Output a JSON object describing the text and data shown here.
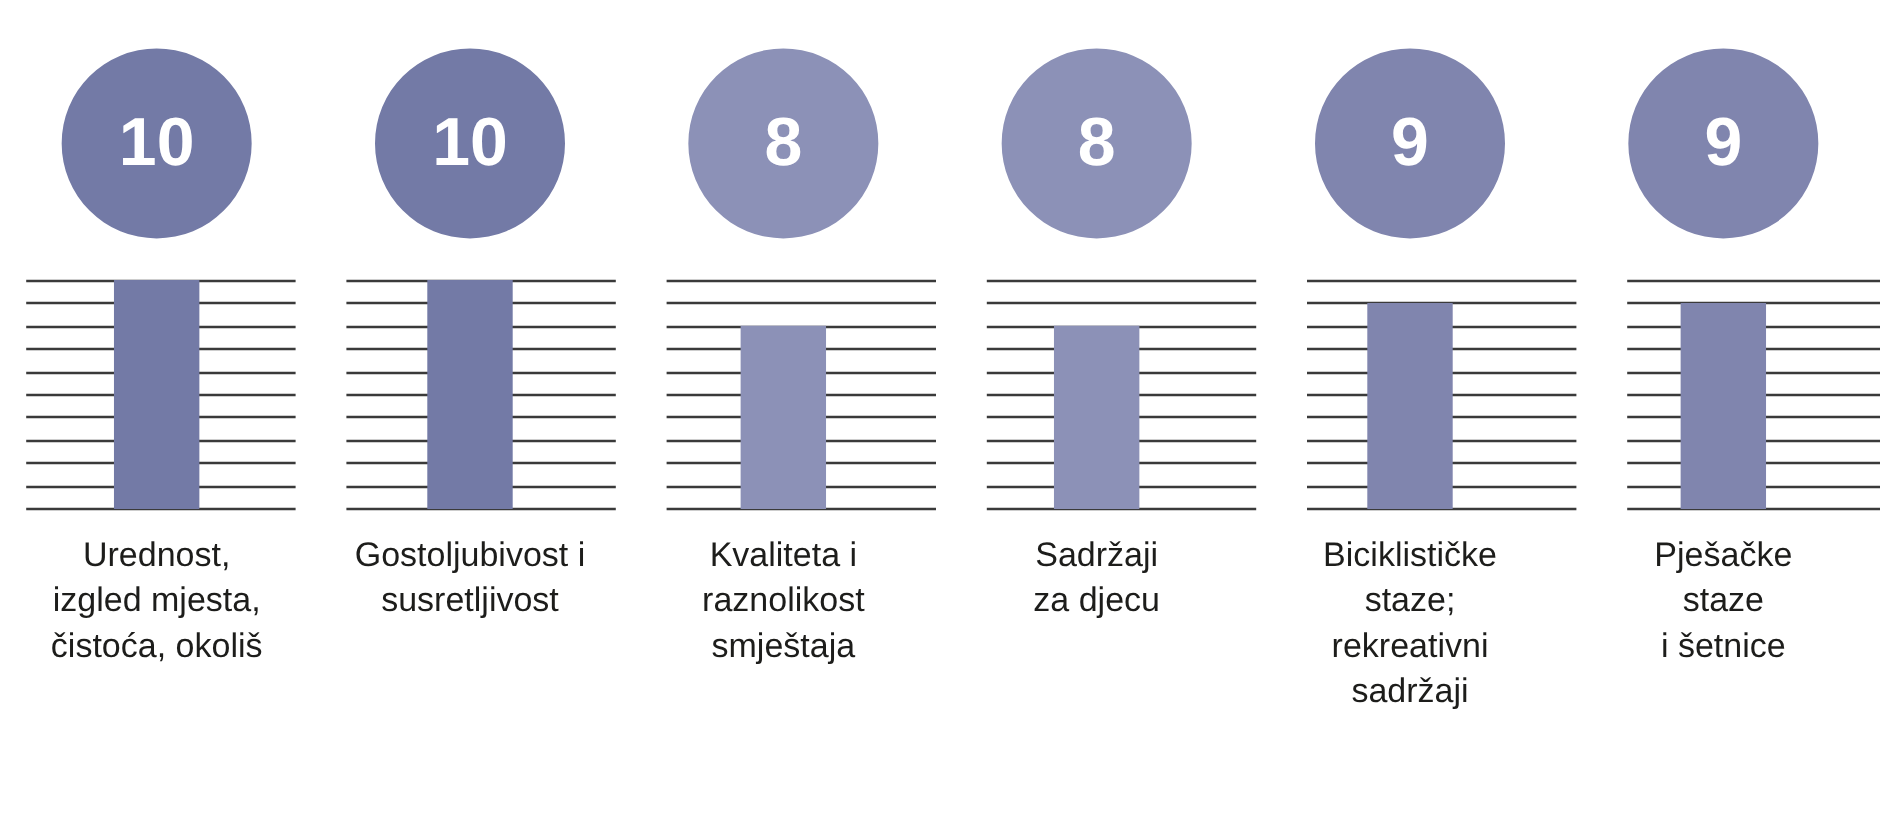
{
  "chart_data": {
    "type": "bar",
    "categories": [
      "Urednost,\nizgled mjesta,\nčistoća, okoliš",
      "Gostoljubivost i\nsusretljivost",
      "Kvaliteta i\nraznolikost\nsmještaja",
      "Sadržaji\nza djecu",
      "Biciklističke\nstaze;\nrekreativni\nsadržaji",
      "Pješačke\nstaze\ni šetnice"
    ],
    "values": [
      10,
      10,
      8,
      8,
      9,
      9
    ],
    "colors": [
      "#737aa6",
      "#737aa6",
      "#8c91b7",
      "#8c91b7",
      "#8085ae",
      "#8085ae"
    ],
    "ylim": [
      0,
      10
    ],
    "yticks": [
      {
        "value": 0,
        "label": null
      },
      {
        "value": 1,
        "label": null
      },
      {
        "value": 2,
        "label": null
      },
      {
        "value": 3,
        "label": null
      },
      {
        "value": 4,
        "label": null
      },
      {
        "value": 5,
        "label": null
      },
      {
        "value": 6,
        "label": null
      },
      {
        "value": 7,
        "label": null
      },
      {
        "value": 8,
        "label": null
      },
      {
        "value": 9,
        "label": null
      },
      {
        "value": 10,
        "label": null
      }
    ],
    "grid": "y",
    "tick_labels": "x",
    "data_labels": true
  }
}
